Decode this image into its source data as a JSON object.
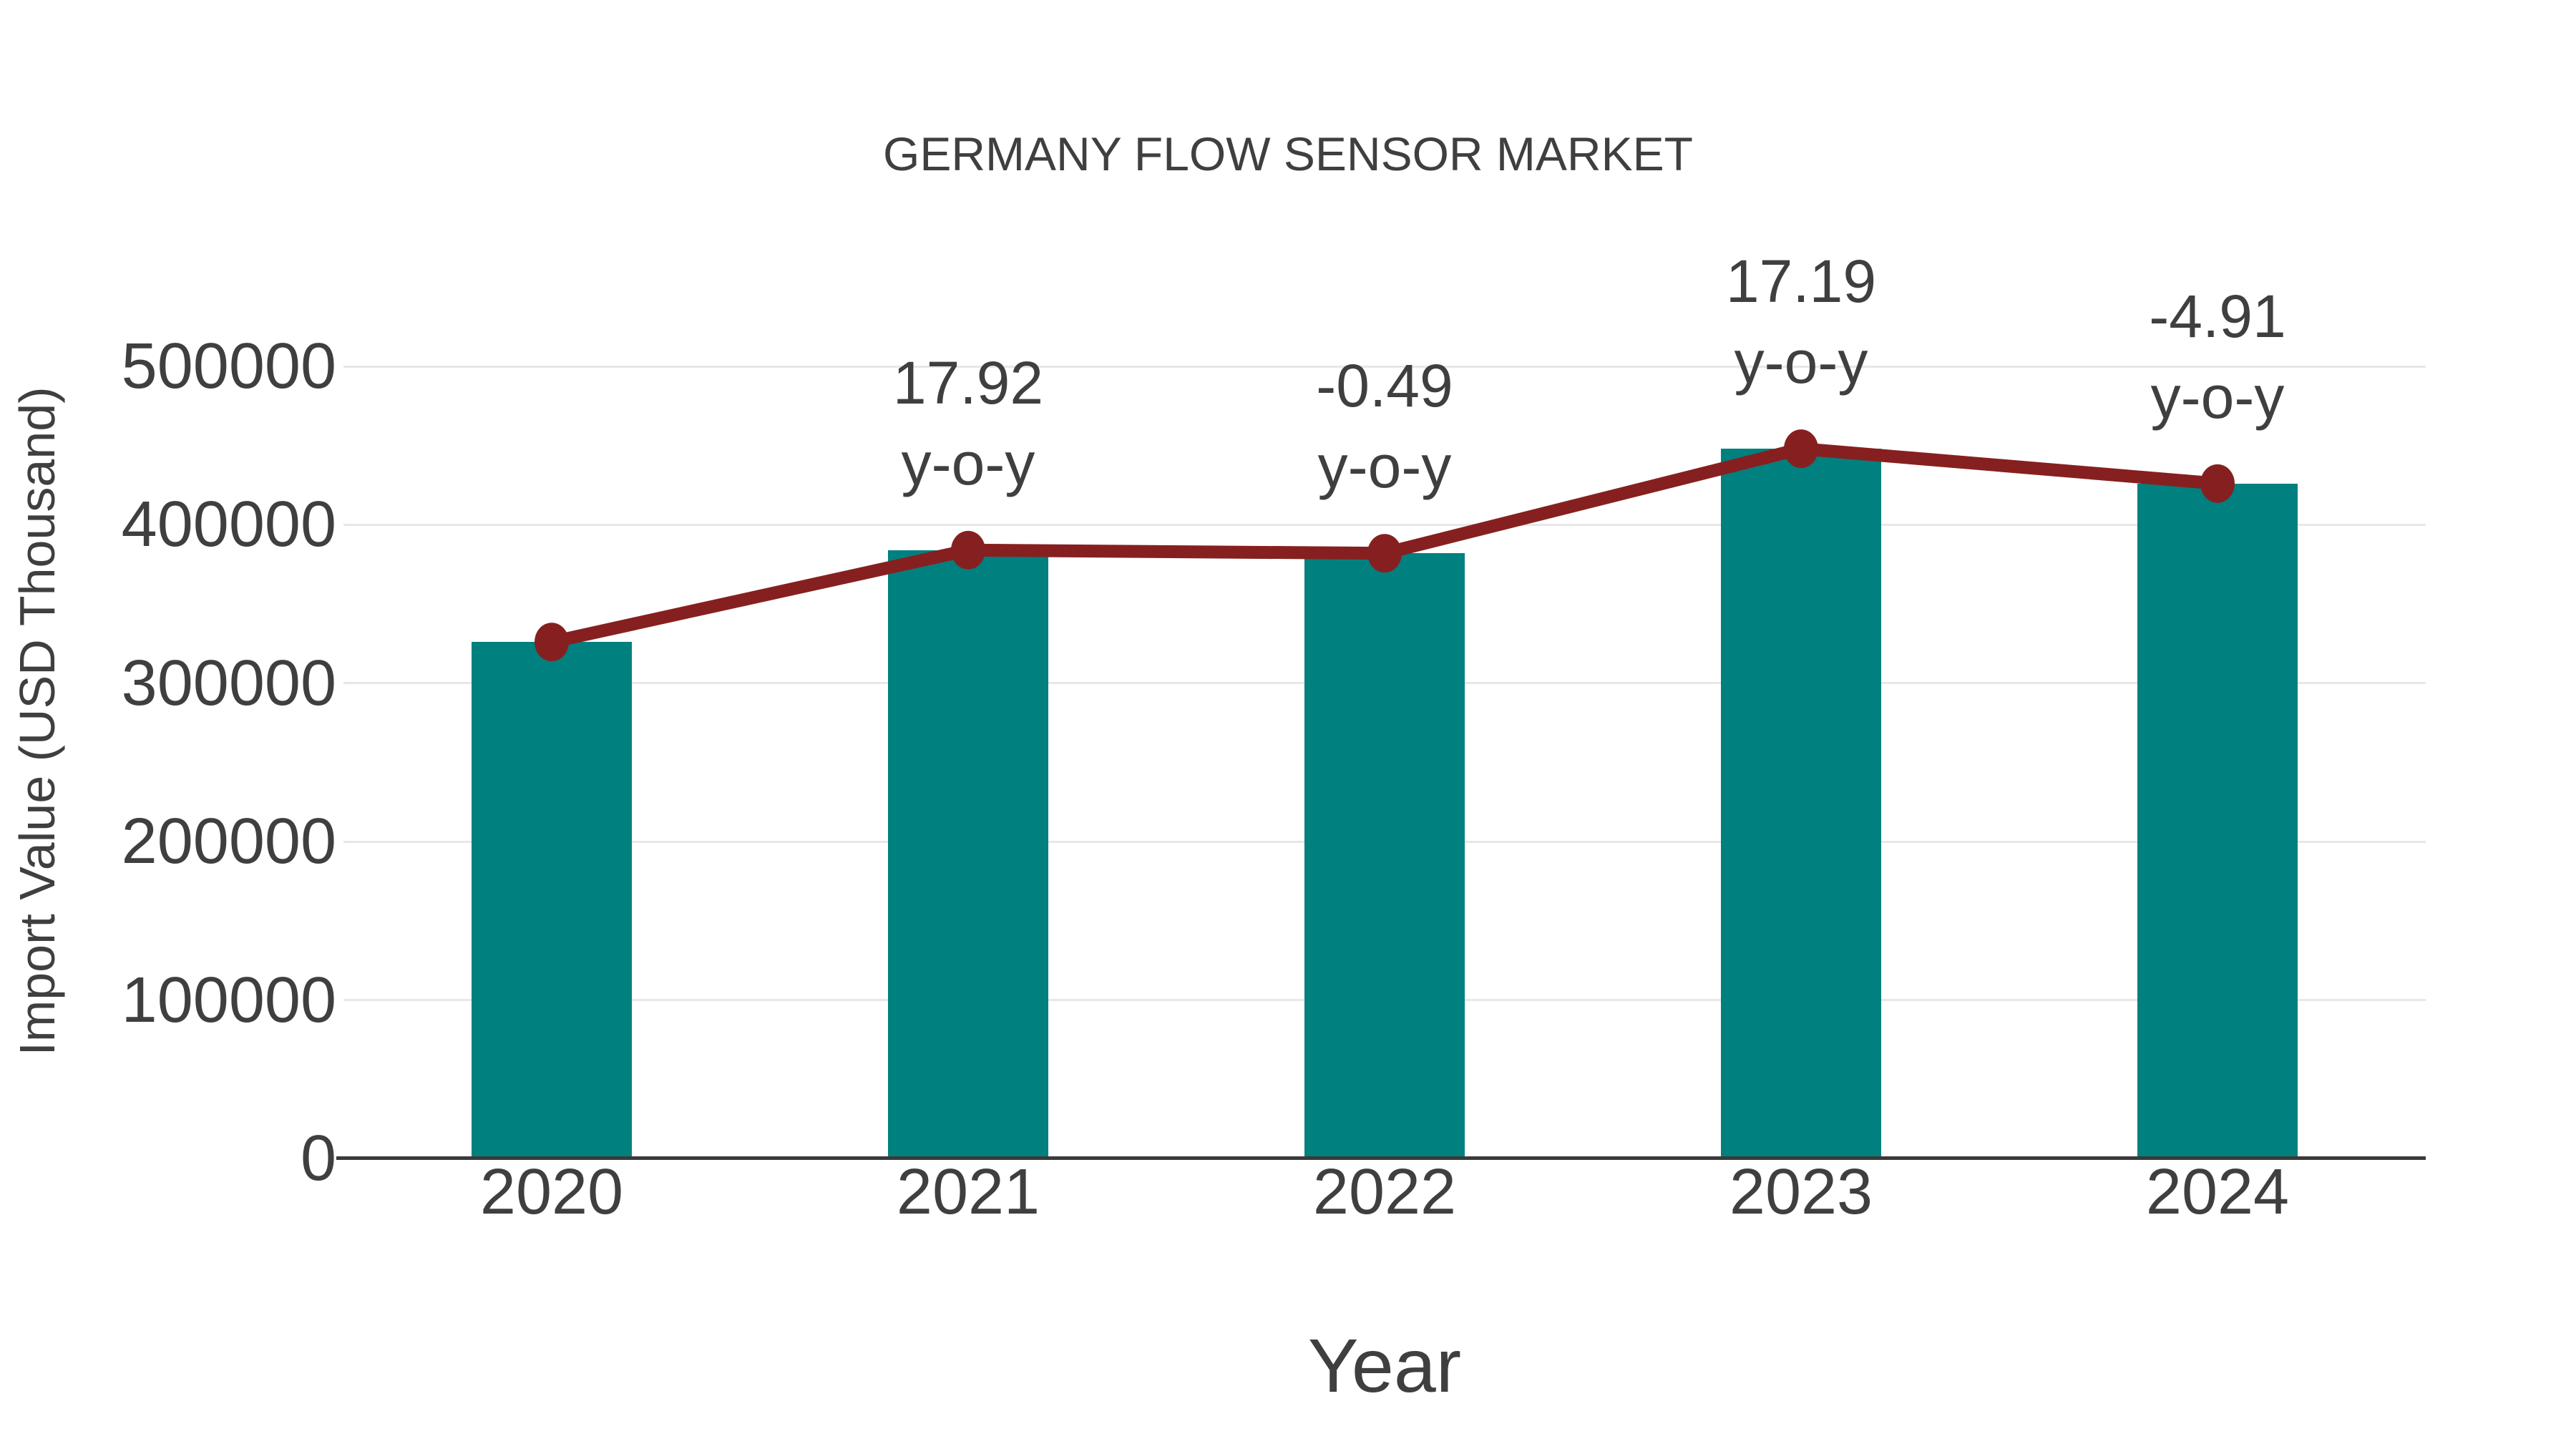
{
  "chart_data": {
    "type": "bar",
    "title": "GERMANY FLOW SENSOR MARKET",
    "xlabel": "Year",
    "ylabel": "Import Value (USD Thousand)",
    "categories": [
      "2020",
      "2021",
      "2022",
      "2023",
      "2024"
    ],
    "series": [
      {
        "name": "Import Value (USD Thousand)",
        "type": "bar",
        "color": "#018080",
        "values": [
          326000,
          384000,
          382000,
          448000,
          426000
        ]
      },
      {
        "name": "y-o-y trend",
        "type": "line",
        "color": "#862020",
        "values": [
          326000,
          384000,
          382000,
          448000,
          426000
        ],
        "point_labels": [
          "",
          "17.92",
          "-0.49",
          "17.19",
          "-4.91"
        ]
      }
    ],
    "annotations": [
      {
        "category": "2021",
        "value_label": "17.92",
        "suffix_label": "y-o-y"
      },
      {
        "category": "2022",
        "value_label": "-0.49",
        "suffix_label": "y-o-y"
      },
      {
        "category": "2023",
        "value_label": "17.19",
        "suffix_label": "y-o-y"
      },
      {
        "category": "2024",
        "value_label": "-4.91",
        "suffix_label": "y-o-y"
      }
    ],
    "ylim": [
      0,
      500000
    ],
    "yticks": [
      0,
      100000,
      200000,
      300000,
      400000,
      500000
    ],
    "grid": true,
    "legend": false,
    "colors": {
      "bar": "#018080",
      "line": "#862020",
      "marker": "#862020",
      "text": "#3f3f3f",
      "grid": "#e7e7e7",
      "axis_line": "#3a3a3a",
      "background": "#ffffff"
    }
  }
}
